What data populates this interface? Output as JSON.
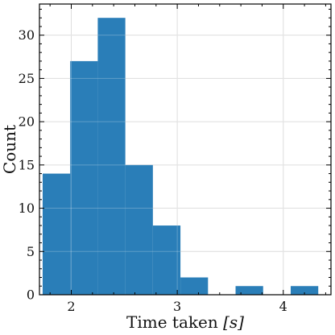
{
  "chart_data": {
    "type": "bar",
    "subtype": "histogram",
    "title": "",
    "xlabel": "Time taken ",
    "xlabel_math": "[s]",
    "ylabel": "Count",
    "xlim": [
      1.7,
      4.45
    ],
    "ylim": [
      0,
      33.6
    ],
    "xticks": [
      2,
      3,
      4
    ],
    "yticks": [
      0,
      5,
      10,
      15,
      20,
      25,
      30
    ],
    "grid": true,
    "bar_color": "#1f77b4",
    "bins": [
      {
        "x0": 1.73,
        "x1": 1.99,
        "value": 14
      },
      {
        "x0": 1.99,
        "x1": 2.25,
        "value": 27
      },
      {
        "x0": 2.25,
        "x1": 2.51,
        "value": 32
      },
      {
        "x0": 2.51,
        "x1": 2.77,
        "value": 15
      },
      {
        "x0": 2.77,
        "x1": 3.03,
        "value": 8
      },
      {
        "x0": 3.03,
        "x1": 3.29,
        "value": 2
      },
      {
        "x0": 3.29,
        "x1": 3.55,
        "value": 0
      },
      {
        "x0": 3.55,
        "x1": 3.81,
        "value": 1
      },
      {
        "x0": 3.81,
        "x1": 4.07,
        "value": 0
      },
      {
        "x0": 4.07,
        "x1": 4.33,
        "value": 1
      }
    ]
  }
}
